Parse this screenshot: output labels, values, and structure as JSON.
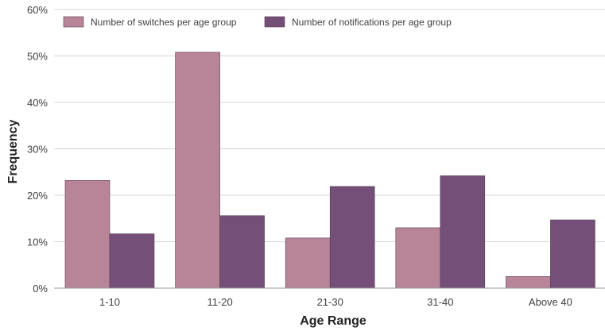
{
  "chart_data": {
    "type": "bar",
    "categories": [
      "1-10",
      "11-20",
      "21-30",
      "31-40",
      "Above 40"
    ],
    "series": [
      {
        "name": "Number of switches per age group",
        "values": [
          23.2,
          50.8,
          10.8,
          13.0,
          2.5
        ],
        "color": "#b78597"
      },
      {
        "name": "Number of notifications per age group",
        "values": [
          11.7,
          15.6,
          21.9,
          24.2,
          14.7
        ],
        "color": "#744f77"
      }
    ],
    "xlabel": "Age Range",
    "ylabel": "Frequency",
    "ylim": [
      0,
      60
    ],
    "yticks": [
      "0%",
      "10%",
      "20%",
      "30%",
      "40%",
      "50%",
      "60%"
    ],
    "grid": true,
    "legend_position": "top-left"
  }
}
